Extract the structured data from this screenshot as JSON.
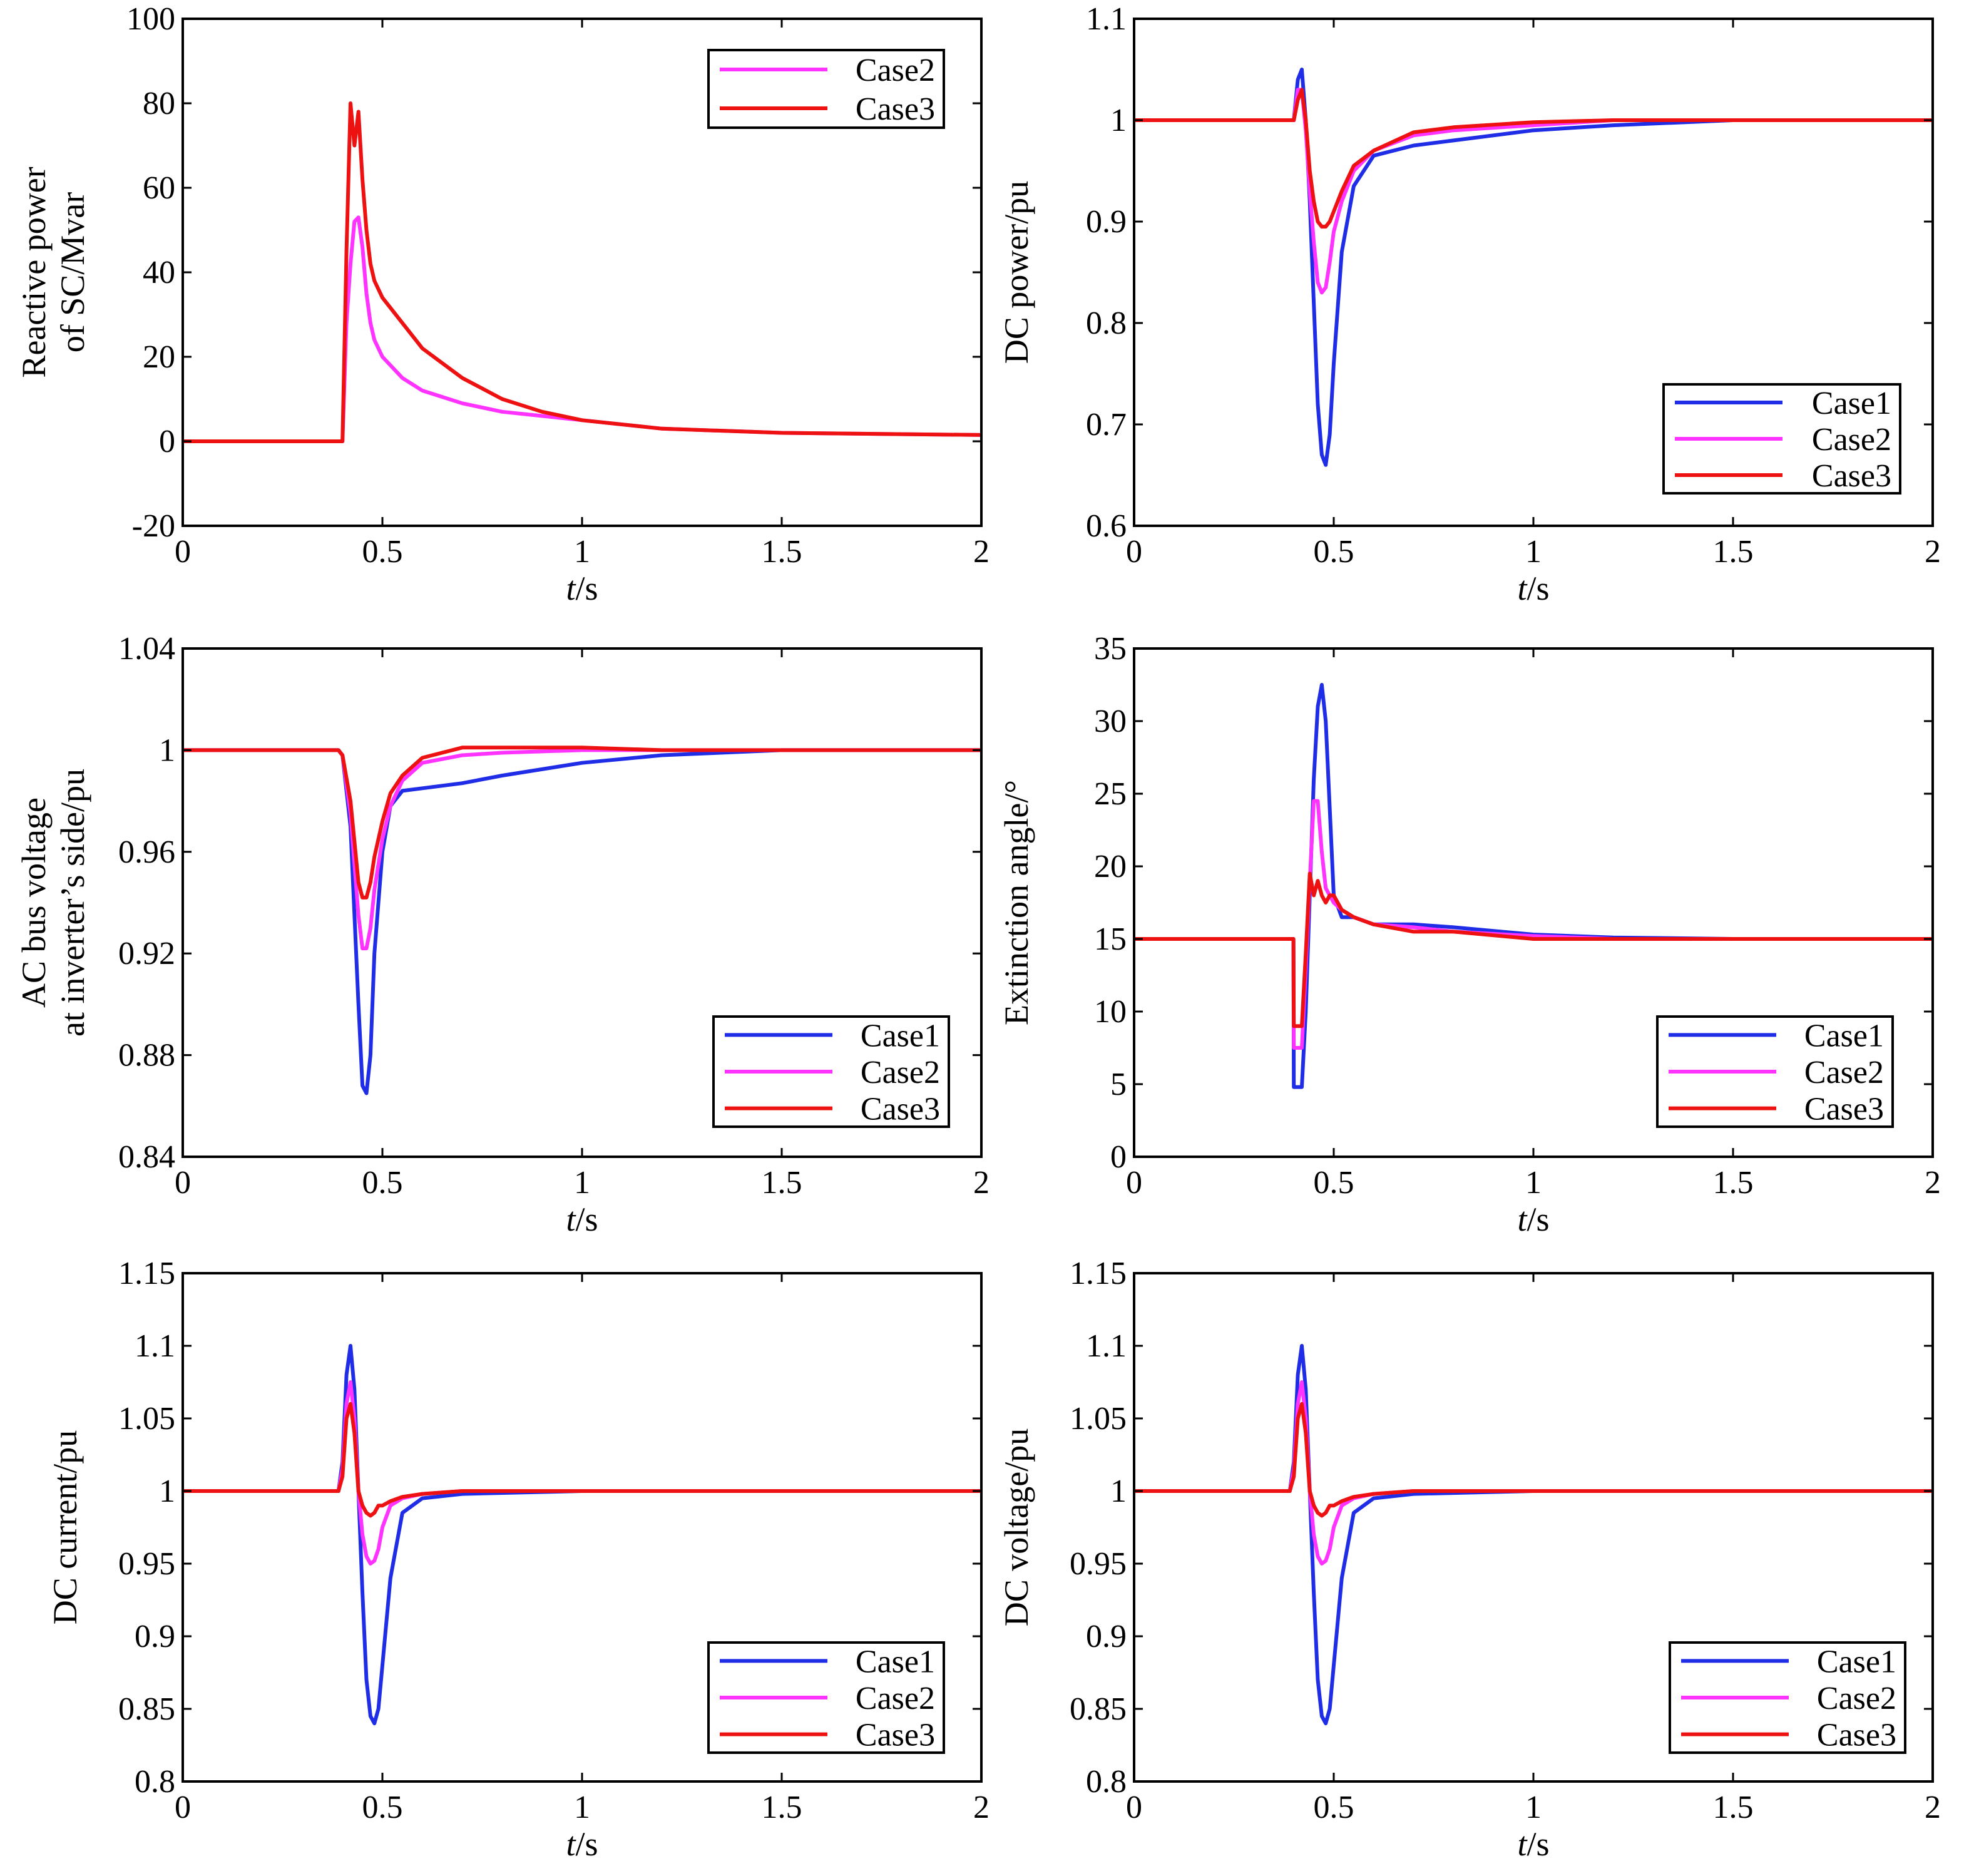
{
  "colors": {
    "case1": "#1f2ee6",
    "case2": "#ff33ff",
    "case3": "#ee1111",
    "frame": "#000000"
  },
  "chart_data": [
    {
      "id": "sc_reactive",
      "type": "line",
      "ylabel_lines": [
        "Reactive power",
        "of SC/Mvar"
      ],
      "xlabel_italic": "t",
      "xlabel_rest": "/s",
      "xlim": [
        0,
        2
      ],
      "ylim": [
        -20,
        100
      ],
      "xticks": [
        0,
        0.5,
        1,
        1.5,
        2
      ],
      "xtick_labels": [
        "0",
        "0.5",
        "1",
        "1.5",
        "2"
      ],
      "yticks": [
        -20,
        0,
        20,
        40,
        60,
        80,
        100
      ],
      "ytick_labels": [
        "-20",
        "0",
        "20",
        "40",
        "60",
        "80",
        "100"
      ],
      "legend": [
        "Case2",
        "Case3"
      ],
      "legend_position": "top-right",
      "series": [
        {
          "name": "Case2",
          "color_key": "case2",
          "x": [
            0,
            0.39,
            0.4,
            0.41,
            0.42,
            0.43,
            0.44,
            0.45,
            0.46,
            0.47,
            0.48,
            0.49,
            0.5,
            0.55,
            0.6,
            0.7,
            0.8,
            0.9,
            1.0,
            1.2,
            1.5,
            2.0
          ],
          "y": [
            0,
            0,
            0,
            28,
            42,
            52,
            53,
            46,
            35,
            28,
            24,
            22,
            20,
            15,
            12,
            9,
            7,
            6,
            5,
            3,
            2,
            1.5
          ]
        },
        {
          "name": "Case3",
          "color_key": "case3",
          "x": [
            0,
            0.39,
            0.4,
            0.41,
            0.42,
            0.43,
            0.44,
            0.45,
            0.46,
            0.47,
            0.48,
            0.49,
            0.5,
            0.55,
            0.6,
            0.7,
            0.8,
            0.9,
            1.0,
            1.2,
            1.5,
            2.0
          ],
          "y": [
            0,
            0,
            0,
            45,
            80,
            70,
            78,
            62,
            50,
            42,
            38,
            36,
            34,
            28,
            22,
            15,
            10,
            7,
            5,
            3,
            2,
            1.5
          ]
        }
      ]
    },
    {
      "id": "dc_power",
      "type": "line",
      "ylabel_lines": [
        "DC power/pu"
      ],
      "xlabel_italic": "t",
      "xlabel_rest": "/s",
      "xlim": [
        0,
        2
      ],
      "ylim": [
        0.6,
        1.1
      ],
      "xticks": [
        0,
        0.5,
        1,
        1.5,
        2
      ],
      "xtick_labels": [
        "0",
        "0.5",
        "1",
        "1.5",
        "2"
      ],
      "yticks": [
        0.6,
        0.7,
        0.8,
        0.9,
        1.0,
        1.1
      ],
      "ytick_labels": [
        "0.6",
        "0.7",
        "0.8",
        "0.9",
        "1",
        "1.1"
      ],
      "legend": [
        "Case1",
        "Case2",
        "Case3"
      ],
      "legend_position": "bottom-right",
      "series": [
        {
          "name": "Case1",
          "color_key": "case1",
          "x": [
            0,
            0.39,
            0.4,
            0.41,
            0.42,
            0.43,
            0.44,
            0.45,
            0.46,
            0.47,
            0.48,
            0.49,
            0.5,
            0.52,
            0.55,
            0.6,
            0.7,
            0.8,
            1.0,
            1.2,
            1.5,
            2.0
          ],
          "y": [
            1,
            1,
            1,
            1.04,
            1.05,
            1.0,
            0.92,
            0.82,
            0.72,
            0.67,
            0.66,
            0.69,
            0.76,
            0.87,
            0.935,
            0.965,
            0.975,
            0.98,
            0.99,
            0.995,
            1,
            1
          ]
        },
        {
          "name": "Case2",
          "color_key": "case2",
          "x": [
            0,
            0.39,
            0.4,
            0.41,
            0.42,
            0.43,
            0.44,
            0.45,
            0.46,
            0.47,
            0.48,
            0.49,
            0.5,
            0.52,
            0.55,
            0.6,
            0.7,
            0.8,
            1.0,
            1.2,
            1.5,
            2.0
          ],
          "y": [
            1,
            1,
            1,
            1.03,
            1.03,
            0.99,
            0.93,
            0.88,
            0.84,
            0.83,
            0.835,
            0.86,
            0.89,
            0.92,
            0.95,
            0.97,
            0.985,
            0.99,
            0.995,
            1,
            1,
            1
          ]
        },
        {
          "name": "Case3",
          "color_key": "case3",
          "x": [
            0,
            0.39,
            0.4,
            0.41,
            0.42,
            0.43,
            0.44,
            0.45,
            0.46,
            0.47,
            0.48,
            0.49,
            0.5,
            0.52,
            0.55,
            0.6,
            0.7,
            0.8,
            1.0,
            1.2,
            1.5,
            2.0
          ],
          "y": [
            1,
            1,
            1,
            1.02,
            1.03,
            1.0,
            0.95,
            0.92,
            0.9,
            0.895,
            0.895,
            0.9,
            0.91,
            0.93,
            0.955,
            0.97,
            0.988,
            0.993,
            0.998,
            1,
            1,
            1
          ]
        }
      ]
    },
    {
      "id": "ac_bus_voltage",
      "type": "line",
      "ylabel_lines": [
        "AC bus voltage",
        "at inverter’s side/pu"
      ],
      "xlabel_italic": "t",
      "xlabel_rest": "/s",
      "xlim": [
        0,
        2
      ],
      "ylim": [
        0.84,
        1.04
      ],
      "xticks": [
        0,
        0.5,
        1,
        1.5,
        2
      ],
      "xtick_labels": [
        "0",
        "0.5",
        "1",
        "1.5",
        "2"
      ],
      "yticks": [
        0.84,
        0.88,
        0.92,
        0.96,
        1.0,
        1.04
      ],
      "ytick_labels": [
        "0.84",
        "0.88",
        "0.92",
        "0.96",
        "1",
        "1.04"
      ],
      "legend": [
        "Case1",
        "Case2",
        "Case3"
      ],
      "legend_position": "bottom-right",
      "series": [
        {
          "name": "Case1",
          "color_key": "case1",
          "x": [
            0,
            0.39,
            0.4,
            0.42,
            0.44,
            0.45,
            0.46,
            0.47,
            0.48,
            0.5,
            0.52,
            0.55,
            0.6,
            0.7,
            0.8,
            1.0,
            1.2,
            1.5,
            2.0
          ],
          "y": [
            1,
            1,
            0.998,
            0.97,
            0.9,
            0.868,
            0.865,
            0.88,
            0.92,
            0.96,
            0.978,
            0.984,
            0.985,
            0.987,
            0.99,
            0.995,
            0.998,
            1,
            1
          ]
        },
        {
          "name": "Case2",
          "color_key": "case2",
          "x": [
            0,
            0.39,
            0.4,
            0.42,
            0.44,
            0.45,
            0.46,
            0.47,
            0.48,
            0.5,
            0.52,
            0.55,
            0.6,
            0.7,
            0.8,
            1.0,
            1.2,
            1.5,
            2.0
          ],
          "y": [
            1,
            1,
            0.998,
            0.975,
            0.935,
            0.922,
            0.922,
            0.93,
            0.945,
            0.965,
            0.978,
            0.988,
            0.995,
            0.998,
            0.999,
            1,
            1,
            1,
            1
          ]
        },
        {
          "name": "Case3",
          "color_key": "case3",
          "x": [
            0,
            0.39,
            0.4,
            0.42,
            0.44,
            0.45,
            0.46,
            0.47,
            0.48,
            0.5,
            0.52,
            0.55,
            0.6,
            0.7,
            0.8,
            1.0,
            1.2,
            1.5,
            2.0
          ],
          "y": [
            1,
            1,
            0.998,
            0.98,
            0.948,
            0.942,
            0.942,
            0.948,
            0.958,
            0.972,
            0.983,
            0.99,
            0.997,
            1.001,
            1.001,
            1.001,
            1,
            1,
            1
          ]
        }
      ]
    },
    {
      "id": "extinction_angle",
      "type": "line",
      "ylabel_lines": [
        "Extinction angle/°"
      ],
      "xlabel_italic": "t",
      "xlabel_rest": "/s",
      "xlim": [
        0,
        2
      ],
      "ylim": [
        0,
        35
      ],
      "xticks": [
        0,
        0.5,
        1,
        1.5,
        2
      ],
      "xtick_labels": [
        "0",
        "0.5",
        "1",
        "1.5",
        "2"
      ],
      "yticks": [
        0,
        5,
        10,
        15,
        20,
        25,
        30,
        35
      ],
      "ytick_labels": [
        "0",
        "5",
        "10",
        "15",
        "20",
        "25",
        "30",
        "35"
      ],
      "legend": [
        "Case1",
        "Case2",
        "Case3"
      ],
      "legend_position": "bottom-right",
      "series": [
        {
          "name": "Case1",
          "color_key": "case1",
          "x": [
            0,
            0.399,
            0.4,
            0.42,
            0.43,
            0.44,
            0.45,
            0.46,
            0.47,
            0.48,
            0.49,
            0.5,
            0.52,
            0.55,
            0.6,
            0.7,
            0.8,
            1.0,
            1.2,
            1.5,
            2.0
          ],
          "y": [
            15,
            15,
            4.8,
            4.8,
            10,
            18,
            26,
            31,
            32.5,
            30,
            24,
            18,
            16.5,
            16.5,
            16,
            16,
            15.8,
            15.3,
            15.1,
            15,
            15
          ]
        },
        {
          "name": "Case2",
          "color_key": "case2",
          "x": [
            0,
            0.399,
            0.4,
            0.42,
            0.43,
            0.44,
            0.45,
            0.46,
            0.47,
            0.48,
            0.49,
            0.5,
            0.52,
            0.55,
            0.6,
            0.7,
            0.8,
            1.0,
            1.2,
            1.5,
            2.0
          ],
          "y": [
            15,
            15,
            7.5,
            7.5,
            13,
            19,
            24.5,
            24.5,
            21,
            18.5,
            18,
            17.5,
            17,
            16.5,
            16,
            15.8,
            15.5,
            15.2,
            15,
            15,
            15
          ]
        },
        {
          "name": "Case3",
          "color_key": "case3",
          "x": [
            0,
            0.399,
            0.4,
            0.42,
            0.43,
            0.44,
            0.45,
            0.46,
            0.47,
            0.48,
            0.49,
            0.5,
            0.52,
            0.55,
            0.6,
            0.7,
            0.8,
            1.0,
            1.2,
            1.5,
            2.0
          ],
          "y": [
            15,
            15,
            9,
            9,
            14,
            19.5,
            18,
            19,
            18,
            17.5,
            18,
            18,
            17,
            16.5,
            16,
            15.5,
            15.5,
            15,
            15,
            15,
            15
          ]
        }
      ]
    },
    {
      "id": "dc_current",
      "type": "line",
      "ylabel_lines": [
        "DC current/pu"
      ],
      "xlabel_italic": "t",
      "xlabel_rest": "/s",
      "xlim": [
        0,
        2
      ],
      "ylim": [
        0.8,
        1.15
      ],
      "xticks": [
        0,
        0.5,
        1,
        1.5,
        2
      ],
      "xtick_labels": [
        "0",
        "0.5",
        "1",
        "1.5",
        "2"
      ],
      "yticks": [
        0.8,
        0.85,
        0.9,
        0.95,
        1.0,
        1.05,
        1.1,
        1.15
      ],
      "ytick_labels": [
        "0.8",
        "0.85",
        "0.9",
        "0.95",
        "1",
        "1.05",
        "1.1",
        "1.15"
      ],
      "legend": [
        "Case1",
        "Case2",
        "Case3"
      ],
      "legend_position": "bottom-right",
      "series": [
        {
          "name": "Case1",
          "color_key": "case1",
          "x": [
            0,
            0.39,
            0.4,
            0.41,
            0.42,
            0.43,
            0.44,
            0.45,
            0.46,
            0.47,
            0.48,
            0.49,
            0.5,
            0.52,
            0.55,
            0.6,
            0.7,
            1.0,
            2.0
          ],
          "y": [
            1,
            1,
            1.02,
            1.08,
            1.1,
            1.07,
            1.0,
            0.93,
            0.87,
            0.845,
            0.84,
            0.85,
            0.88,
            0.94,
            0.985,
            0.995,
            0.998,
            1,
            1
          ]
        },
        {
          "name": "Case2",
          "color_key": "case2",
          "x": [
            0,
            0.39,
            0.4,
            0.41,
            0.42,
            0.43,
            0.44,
            0.45,
            0.46,
            0.47,
            0.48,
            0.49,
            0.5,
            0.52,
            0.55,
            0.6,
            0.7,
            1.0,
            2.0
          ],
          "y": [
            1,
            1,
            1.015,
            1.06,
            1.075,
            1.05,
            1.0,
            0.97,
            0.955,
            0.95,
            0.952,
            0.96,
            0.975,
            0.99,
            0.995,
            0.998,
            1,
            1,
            1
          ]
        },
        {
          "name": "Case3",
          "color_key": "case3",
          "x": [
            0,
            0.39,
            0.4,
            0.41,
            0.42,
            0.43,
            0.44,
            0.45,
            0.46,
            0.47,
            0.48,
            0.49,
            0.5,
            0.52,
            0.55,
            0.6,
            0.7,
            1.0,
            2.0
          ],
          "y": [
            1,
            1,
            1.01,
            1.05,
            1.06,
            1.04,
            1.0,
            0.99,
            0.985,
            0.983,
            0.985,
            0.99,
            0.99,
            0.993,
            0.996,
            0.998,
            1,
            1,
            1
          ]
        }
      ]
    },
    {
      "id": "dc_voltage",
      "type": "line",
      "ylabel_lines": [
        "DC voltage/pu"
      ],
      "xlabel_italic": "t",
      "xlabel_rest": "/s",
      "xlim": [
        0,
        2
      ],
      "ylim": [
        0.8,
        1.15
      ],
      "xticks": [
        0,
        0.5,
        1,
        1.5,
        2
      ],
      "xtick_labels": [
        "0",
        "0.5",
        "1",
        "1.5",
        "2"
      ],
      "yticks": [
        0.8,
        0.85,
        0.9,
        0.95,
        1.0,
        1.05,
        1.1,
        1.15
      ],
      "ytick_labels": [
        "0.8",
        "0.85",
        "0.9",
        "0.95",
        "1",
        "1.05",
        "1.1",
        "1.15"
      ],
      "legend": [
        "Case1",
        "Case2",
        "Case3"
      ],
      "legend_position": "bottom-right",
      "series": [
        {
          "name": "Case1",
          "color_key": "case1",
          "x": [
            0,
            0.39,
            0.4,
            0.41,
            0.42,
            0.43,
            0.44,
            0.45,
            0.46,
            0.47,
            0.48,
            0.49,
            0.5,
            0.52,
            0.55,
            0.6,
            0.7,
            1.0,
            2.0
          ],
          "y": [
            1,
            1,
            1.02,
            1.08,
            1.1,
            1.07,
            1.0,
            0.93,
            0.87,
            0.845,
            0.84,
            0.85,
            0.88,
            0.94,
            0.985,
            0.995,
            0.998,
            1,
            1
          ]
        },
        {
          "name": "Case2",
          "color_key": "case2",
          "x": [
            0,
            0.39,
            0.4,
            0.41,
            0.42,
            0.43,
            0.44,
            0.45,
            0.46,
            0.47,
            0.48,
            0.49,
            0.5,
            0.52,
            0.55,
            0.6,
            0.7,
            1.0,
            2.0
          ],
          "y": [
            1,
            1,
            1.015,
            1.06,
            1.075,
            1.05,
            1.0,
            0.97,
            0.955,
            0.95,
            0.952,
            0.96,
            0.975,
            0.99,
            0.995,
            0.998,
            1,
            1,
            1
          ]
        },
        {
          "name": "Case3",
          "color_key": "case3",
          "x": [
            0,
            0.39,
            0.4,
            0.41,
            0.42,
            0.43,
            0.44,
            0.45,
            0.46,
            0.47,
            0.48,
            0.49,
            0.5,
            0.52,
            0.55,
            0.6,
            0.7,
            1.0,
            2.0
          ],
          "y": [
            1,
            1,
            1.01,
            1.05,
            1.06,
            1.04,
            1.0,
            0.99,
            0.985,
            0.983,
            0.985,
            0.99,
            0.99,
            0.993,
            0.996,
            0.998,
            1,
            1,
            1
          ]
        }
      ]
    }
  ]
}
